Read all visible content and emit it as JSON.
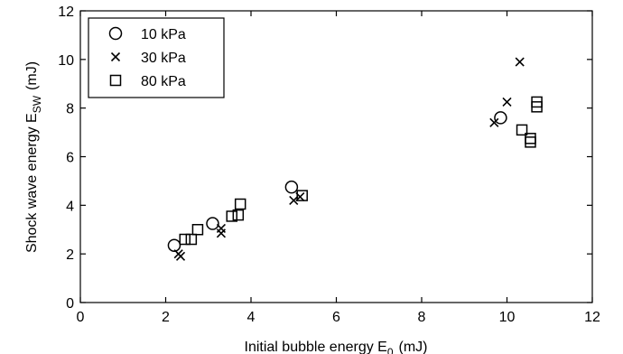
{
  "chart_data": {
    "type": "scatter",
    "xlabel": "Initial bubble energy E",
    "xlabel_sub": "0",
    "xlabel_unit": "(mJ)",
    "ylabel": "Shock wave energy  E",
    "ylabel_sub": "SW",
    "ylabel_unit": "(mJ)",
    "xlim": [
      0,
      12
    ],
    "ylim": [
      0,
      12
    ],
    "xticks": [
      0,
      2,
      4,
      6,
      8,
      10,
      12
    ],
    "yticks": [
      0,
      2,
      4,
      6,
      8,
      10,
      12
    ],
    "grid": false,
    "legend_position": "top-left",
    "series": [
      {
        "name": "10 kPa",
        "marker": "circle",
        "points": [
          [
            2.2,
            2.35
          ],
          [
            3.1,
            3.25
          ],
          [
            4.95,
            4.75
          ],
          [
            9.85,
            7.6
          ]
        ]
      },
      {
        "name": "30 kPa",
        "marker": "x",
        "points": [
          [
            2.3,
            2.0
          ],
          [
            2.35,
            1.9
          ],
          [
            3.3,
            2.85
          ],
          [
            3.3,
            3.05
          ],
          [
            5.0,
            4.2
          ],
          [
            5.15,
            4.35
          ],
          [
            9.7,
            7.4
          ],
          [
            10.0,
            8.25
          ],
          [
            10.3,
            9.9
          ]
        ]
      },
      {
        "name": "80 kPa",
        "marker": "square",
        "points": [
          [
            2.45,
            2.6
          ],
          [
            2.6,
            2.6
          ],
          [
            2.75,
            3.0
          ],
          [
            3.55,
            3.55
          ],
          [
            3.7,
            3.6
          ],
          [
            3.75,
            4.05
          ],
          [
            5.2,
            4.4
          ],
          [
            10.35,
            7.1
          ],
          [
            10.55,
            6.6
          ],
          [
            10.55,
            6.75
          ],
          [
            10.7,
            8.05
          ],
          [
            10.7,
            8.25
          ]
        ]
      }
    ]
  }
}
